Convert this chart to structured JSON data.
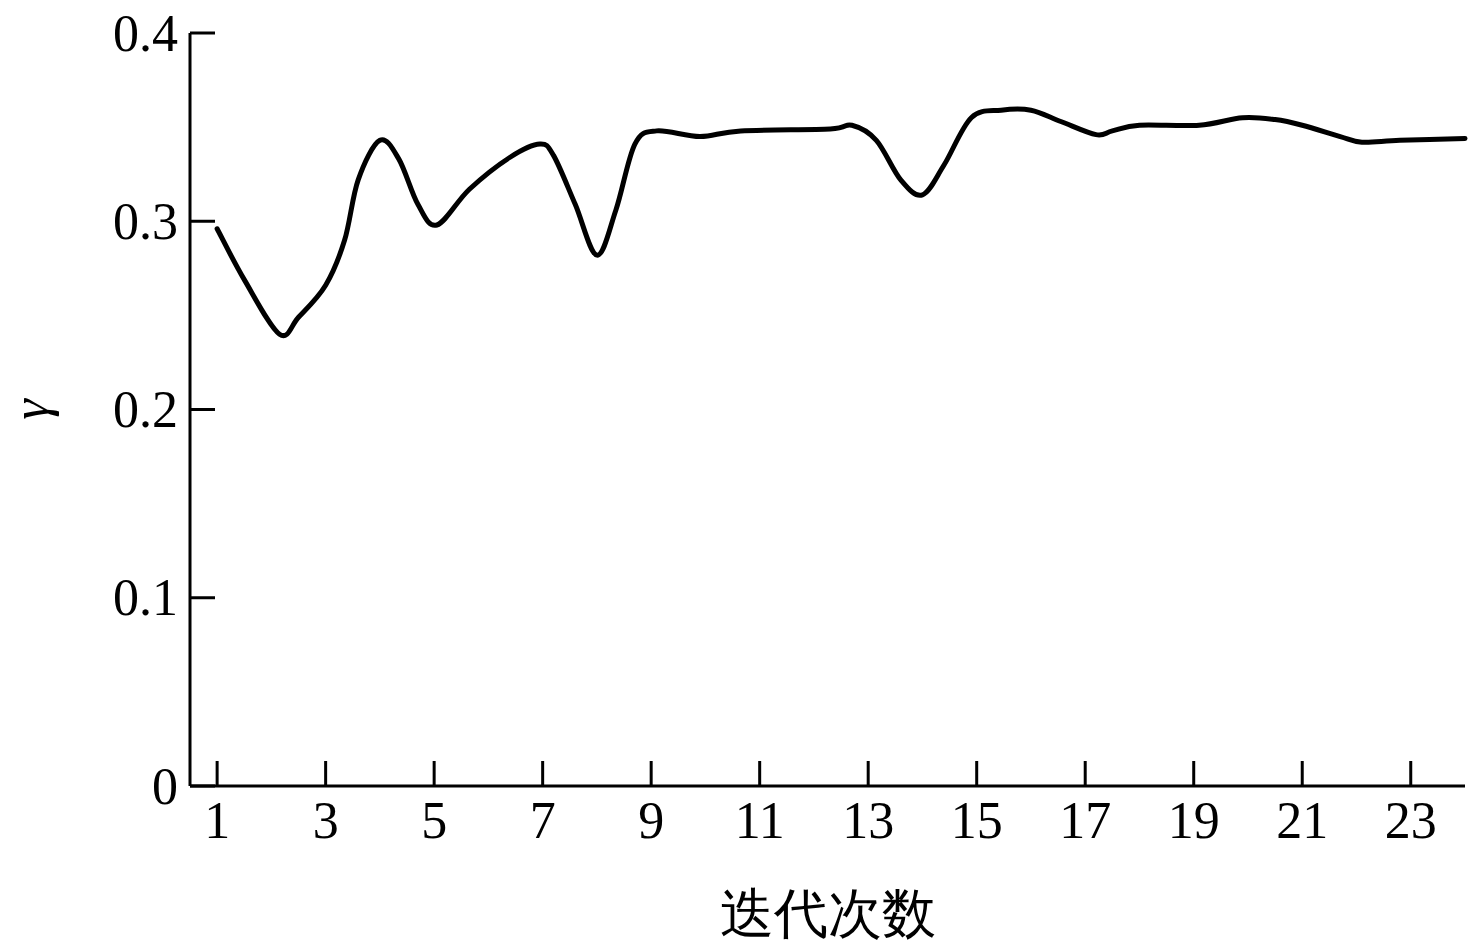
{
  "chart_data": {
    "type": "line",
    "xlabel": "迭代次数",
    "ylabel": "γ",
    "x": [
      1,
      1.5,
      2.15,
      2.5,
      3,
      3.35,
      3.6,
      4.0,
      4.35,
      4.7,
      5.05,
      5.65,
      6.4,
      6.95,
      7.2,
      7.6,
      8.0,
      8.35,
      8.7,
      9.1,
      9.9,
      10.65,
      12.3,
      12.7,
      13.15,
      13.6,
      14.0,
      14.4,
      14.9,
      15.45,
      16.0,
      16.55,
      17.2,
      17.5,
      18.0,
      19.1,
      19.9,
      20.5,
      21.0,
      21.7,
      22.1,
      22.8,
      24.0
    ],
    "series": [
      {
        "color": "#000000",
        "values": [
          0.296,
          0.269,
          0.24,
          0.249,
          0.266,
          0.29,
          0.322,
          0.343,
          0.333,
          0.309,
          0.298,
          0.317,
          0.334,
          0.341,
          0.335,
          0.309,
          0.282,
          0.306,
          0.341,
          0.348,
          0.345,
          0.348,
          0.349,
          0.351,
          0.343,
          0.322,
          0.314,
          0.33,
          0.355,
          0.359,
          0.359,
          0.353,
          0.346,
          0.348,
          0.351,
          0.351,
          0.355,
          0.354,
          0.351,
          0.345,
          0.342,
          0.343,
          0.344
        ]
      }
    ],
    "xlim": [
      0.5,
      24
    ],
    "ylim": [
      0,
      0.4
    ],
    "xticks": [
      1,
      3,
      5,
      7,
      9,
      11,
      13,
      15,
      17,
      19,
      21,
      23
    ],
    "yticks": [
      0,
      0.1,
      0.2,
      0.3,
      0.4
    ],
    "line_style": "solid"
  }
}
